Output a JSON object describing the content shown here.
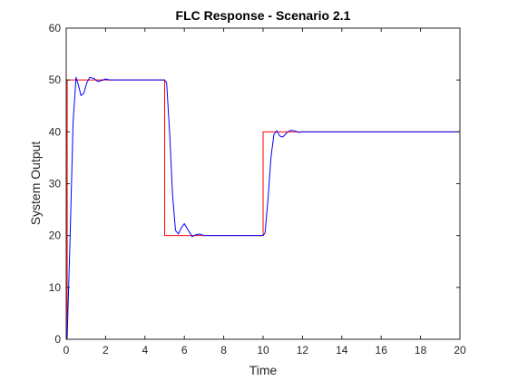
{
  "chart_data": {
    "type": "line",
    "title": "FLC Response - Scenario 2.1",
    "xlabel": "Time",
    "ylabel": "System Output",
    "xlim": [
      0,
      20
    ],
    "ylim": [
      0,
      60
    ],
    "xticks": [
      0,
      2,
      4,
      6,
      8,
      10,
      12,
      14,
      16,
      18,
      20
    ],
    "yticks": [
      0,
      10,
      20,
      30,
      40,
      50,
      60
    ],
    "grid": false,
    "legend": "none",
    "series": [
      {
        "color": "#ff0000",
        "x": [
          0,
          0.05,
          0.05,
          5,
          5,
          10,
          10,
          20
        ],
        "y": [
          0,
          0,
          50,
          50,
          20,
          20,
          40,
          40
        ]
      },
      {
        "color": "#0000ff",
        "x": [
          0,
          0.05,
          0.2,
          0.35,
          0.5,
          0.62,
          0.75,
          0.9,
          1.05,
          1.2,
          1.4,
          1.6,
          1.8,
          2.0,
          2.2,
          2.5,
          3.0,
          5.0,
          5.1,
          5.25,
          5.4,
          5.55,
          5.7,
          5.85,
          6.0,
          6.2,
          6.4,
          6.6,
          6.8,
          7.0,
          7.3,
          7.6,
          8.0,
          10.0,
          10.1,
          10.25,
          10.4,
          10.55,
          10.7,
          10.85,
          11.0,
          11.2,
          11.4,
          11.6,
          11.8,
          12.0,
          12.3,
          13.0,
          20.0
        ],
        "y": [
          0,
          0.5,
          20,
          42,
          50.5,
          49,
          47,
          47.5,
          49.5,
          50.5,
          50.3,
          49.7,
          49.9,
          50.2,
          50.0,
          50.0,
          50.0,
          50.0,
          49.5,
          40,
          28,
          21,
          20.3,
          21.5,
          22.3,
          21.0,
          19.8,
          20.2,
          20.3,
          20.0,
          20.0,
          20.0,
          20.0,
          20.0,
          20.5,
          27,
          35,
          39.5,
          40.2,
          39.2,
          39.0,
          39.8,
          40.3,
          40.2,
          39.9,
          40.0,
          40.0,
          40.0,
          40.0
        ]
      }
    ]
  }
}
